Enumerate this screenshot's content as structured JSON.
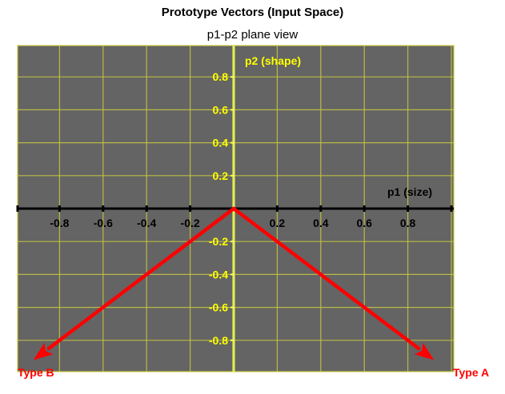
{
  "title": "Prototype Vectors (Input Space)",
  "subtitle": "p1-p2 plane view",
  "x_axis_label": "p1 (size)",
  "y_axis_label": "p2 (shape)",
  "colors": {
    "plot_bg": "#646464",
    "grid": "#c8c841",
    "y_axis": "#ffff55",
    "x_axis": "#000000",
    "vector": "#ff0000",
    "tick_text_x": "#000000",
    "tick_text_y": "#ffff00"
  },
  "chart_data": {
    "type": "scatter",
    "xlim": [
      -1,
      1
    ],
    "ylim": [
      -1,
      1
    ],
    "grid": true,
    "x_ticks": [
      -0.8,
      -0.6,
      -0.4,
      -0.2,
      0.2,
      0.4,
      0.6,
      0.8
    ],
    "x_tick_labels": [
      "-0.8",
      "-0.6",
      "-0.4",
      "-0.2",
      "0.2",
      "0.4",
      "0.6",
      "0.8"
    ],
    "y_ticks": [
      0.8,
      0.6,
      0.4,
      0.2,
      -0.2,
      -0.4,
      -0.6,
      -0.8
    ],
    "y_tick_labels": [
      "0.8",
      "0.6",
      "0.4",
      "0.2",
      "-0.2",
      "-0.4",
      "-0.6",
      "-0.8"
    ],
    "vectors": [
      {
        "name": "Type A",
        "from": [
          0,
          0
        ],
        "to": [
          0.92,
          -0.92
        ]
      },
      {
        "name": "Type B",
        "from": [
          0,
          0
        ],
        "to": [
          -0.92,
          -0.92
        ]
      }
    ]
  }
}
